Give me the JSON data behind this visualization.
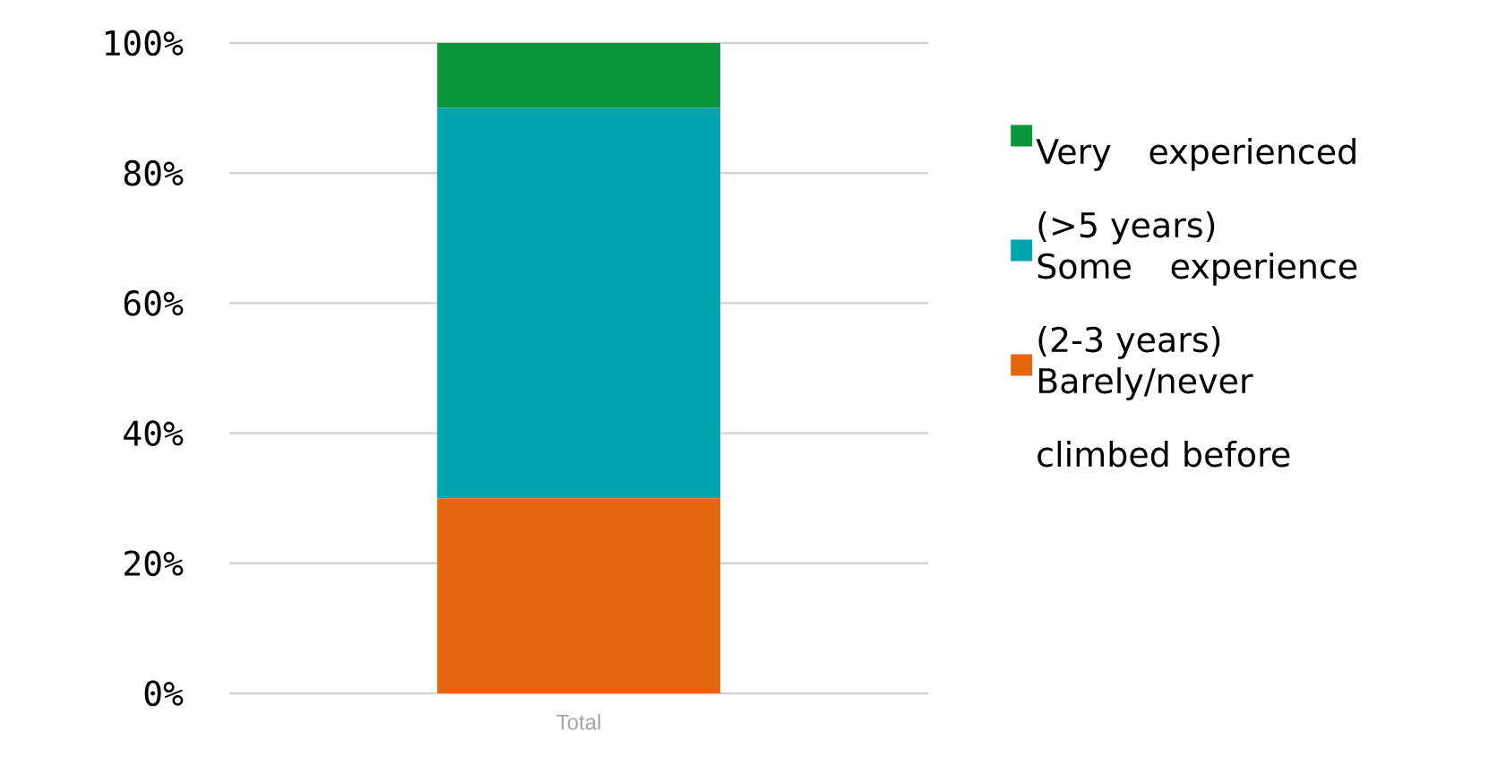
{
  "chart_data": {
    "type": "bar",
    "stacked": true,
    "categories": [
      "Total"
    ],
    "series": [
      {
        "name": "Barely/never climbed before",
        "color": "#e5660f",
        "values": [
          30
        ]
      },
      {
        "name": "Some experience (2-3 years)",
        "color": "#00a5ae",
        "values": [
          60
        ]
      },
      {
        "name": "Very experienced (>5 years)",
        "color": "#0b963c",
        "values": [
          10
        ]
      }
    ],
    "ylim": [
      0,
      100
    ],
    "yticks": [
      {
        "value": 0,
        "label": "0%"
      },
      {
        "value": 20,
        "label": "20%"
      },
      {
        "value": 40,
        "label": "40%"
      },
      {
        "value": 60,
        "label": "60%"
      },
      {
        "value": 80,
        "label": "80%"
      },
      {
        "value": 100,
        "label": "100%"
      }
    ],
    "grid": "y",
    "legend": "right"
  }
}
